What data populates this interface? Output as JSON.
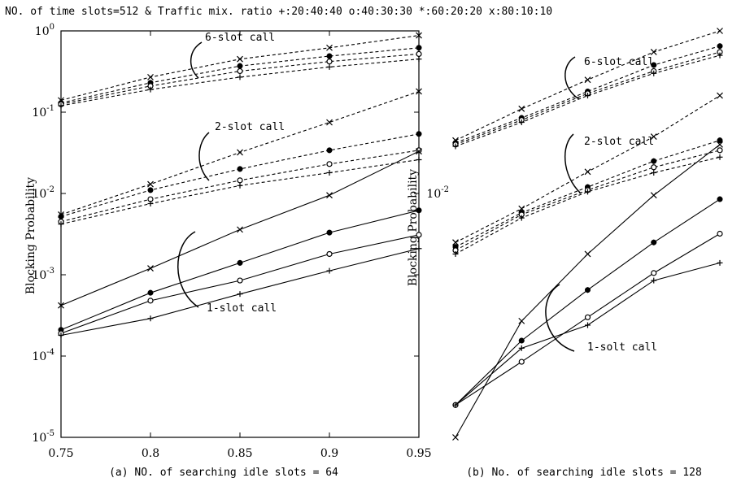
{
  "figure": {
    "header": "NO. of time slots=512 & Traffic mix. ratio +:20:40:40 o:40:30:30 *:60:20:20 x:80:10:10",
    "panel_a_caption": "(a) NO. of searching idle slots = 64",
    "panel_b_caption": "(b) No. of searching idle slots = 128"
  },
  "chart_data": [
    {
      "type": "line",
      "panel": "a",
      "ylabel": "Blocking Probability",
      "xlabel": "",
      "x": [
        0.75,
        0.8,
        0.85,
        0.9,
        0.95
      ],
      "xticks": [
        "0.75",
        "0.8",
        "0.85",
        "0.9",
        "0.95"
      ],
      "xlim": [
        0.75,
        0.95
      ],
      "yscale": "log",
      "ylim": [
        1e-05,
        1
      ],
      "yticks": [
        {
          "base": "10",
          "exp": "0",
          "value": 1
        },
        {
          "base": "10",
          "exp": "-1",
          "value": 0.1
        },
        {
          "base": "10",
          "exp": "-2",
          "value": 0.01
        },
        {
          "base": "10",
          "exp": "-3",
          "value": 0.001
        },
        {
          "base": "10",
          "exp": "-4",
          "value": 0.0001
        },
        {
          "base": "10",
          "exp": "-5",
          "value": 1e-05
        }
      ],
      "annotations": [
        "6-slot call",
        "2-slot call",
        "1-slot call"
      ],
      "series": [
        {
          "marker": "x",
          "group": "6-slot",
          "style": "dashed",
          "values": [
            0.14,
            0.27,
            0.45,
            0.62,
            0.88
          ]
        },
        {
          "marker": "*",
          "group": "6-slot",
          "style": "dashed",
          "values": [
            0.13,
            0.23,
            0.37,
            0.49,
            0.62
          ]
        },
        {
          "marker": "o",
          "group": "6-slot",
          "style": "dashed",
          "values": [
            0.125,
            0.21,
            0.32,
            0.42,
            0.52
          ]
        },
        {
          "marker": "+",
          "group": "6-slot",
          "style": "dashed",
          "values": [
            0.12,
            0.19,
            0.27,
            0.36,
            0.45
          ]
        },
        {
          "marker": "x",
          "group": "2-slot",
          "style": "dashed",
          "values": [
            0.0055,
            0.013,
            0.032,
            0.075,
            0.18
          ]
        },
        {
          "marker": "*",
          "group": "2-slot",
          "style": "dashed",
          "values": [
            0.0052,
            0.011,
            0.02,
            0.034,
            0.054
          ]
        },
        {
          "marker": "o",
          "group": "2-slot",
          "style": "dashed",
          "values": [
            0.0045,
            0.0085,
            0.0145,
            0.023,
            0.034
          ]
        },
        {
          "marker": "+",
          "group": "2-slot",
          "style": "dashed",
          "values": [
            0.0042,
            0.0075,
            0.0125,
            0.018,
            0.026
          ]
        },
        {
          "marker": "x",
          "group": "1-slot",
          "style": "solid",
          "values": [
            0.00042,
            0.0012,
            0.0036,
            0.0095,
            0.033
          ]
        },
        {
          "marker": "*",
          "group": "1-slot",
          "style": "solid",
          "values": [
            0.00021,
            0.0006,
            0.0014,
            0.0033,
            0.0062
          ]
        },
        {
          "marker": "o",
          "group": "1-slot",
          "style": "solid",
          "values": [
            0.00019,
            0.00048,
            0.00085,
            0.0018,
            0.0031
          ]
        },
        {
          "marker": "+",
          "group": "1-slot",
          "style": "solid",
          "values": [
            0.00018,
            0.00029,
            0.00058,
            0.00112,
            0.0021
          ]
        }
      ]
    },
    {
      "type": "line",
      "panel": "b",
      "ylabel": "Blocking Probability",
      "xlabel": "",
      "x": [
        0.75,
        0.8,
        0.85,
        0.9,
        0.95
      ],
      "xticks": [],
      "xlim": [
        0.75,
        0.95
      ],
      "yscale": "log",
      "ylim": [
        1e-05,
        1
      ],
      "yticks": [
        {
          "base": "",
          "exp": "",
          "value": 1
        },
        {
          "base": "",
          "exp": "",
          "value": 0.1
        },
        {
          "base": "10",
          "exp": "-2",
          "value": 0.01
        },
        {
          "base": "",
          "exp": "",
          "value": 0.001
        },
        {
          "base": "",
          "exp": "",
          "value": 0.0001
        },
        {
          "base": "",
          "exp": "",
          "value": 1e-05
        }
      ],
      "annotations": [
        "6-slot call",
        "2-slot call",
        "1-solt call"
      ],
      "series": [
        {
          "marker": "x",
          "group": "6-slot",
          "style": "dashed",
          "values": [
            0.045,
            0.11,
            0.25,
            0.55,
            1.0
          ]
        },
        {
          "marker": "*",
          "group": "6-slot",
          "style": "dashed",
          "values": [
            0.042,
            0.085,
            0.18,
            0.38,
            0.65
          ]
        },
        {
          "marker": "o",
          "group": "6-slot",
          "style": "dashed",
          "values": [
            0.04,
            0.08,
            0.17,
            0.32,
            0.55
          ]
        },
        {
          "marker": "+",
          "group": "6-slot",
          "style": "dashed",
          "values": [
            0.038,
            0.075,
            0.16,
            0.3,
            0.5
          ]
        },
        {
          "marker": "x",
          "group": "2-slot",
          "style": "dashed",
          "values": [
            0.0025,
            0.0065,
            0.0185,
            0.05,
            0.16
          ]
        },
        {
          "marker": "*",
          "group": "2-slot",
          "style": "dashed",
          "values": [
            0.0022,
            0.0058,
            0.012,
            0.025,
            0.045
          ]
        },
        {
          "marker": "o",
          "group": "2-slot",
          "style": "dashed",
          "values": [
            0.002,
            0.0055,
            0.011,
            0.021,
            0.034
          ]
        },
        {
          "marker": "+",
          "group": "2-slot",
          "style": "dashed",
          "values": [
            0.0018,
            0.005,
            0.0105,
            0.018,
            0.028
          ]
        },
        {
          "marker": "x",
          "group": "1-slot",
          "style": "solid",
          "values": [
            1e-05,
            0.00027,
            0.0018,
            0.0095,
            0.04
          ]
        },
        {
          "marker": "*",
          "group": "1-slot",
          "style": "solid",
          "values": [
            2.5e-05,
            0.000155,
            0.00065,
            0.0025,
            0.0085
          ]
        },
        {
          "marker": "o",
          "group": "1-slot",
          "style": "solid",
          "values": [
            2.5e-05,
            8.5e-05,
            0.0003,
            0.00105,
            0.0032
          ]
        },
        {
          "marker": "+",
          "group": "1-slot",
          "style": "solid",
          "values": [
            2.5e-05,
            0.000125,
            0.00024,
            0.00085,
            0.0014
          ]
        }
      ]
    }
  ]
}
